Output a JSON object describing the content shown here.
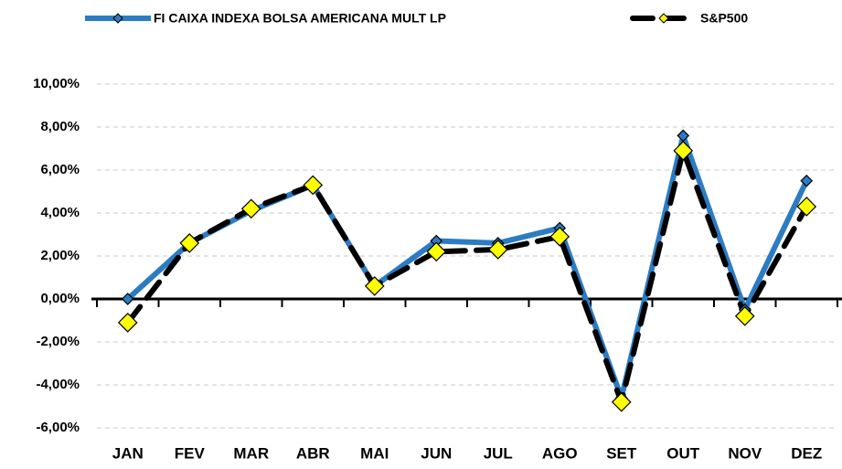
{
  "chart_data": {
    "type": "line",
    "categories": [
      "JAN",
      "FEV",
      "MAR",
      "ABR",
      "MAI",
      "JUN",
      "JUL",
      "AGO",
      "SET",
      "OUT",
      "NOV",
      "DEZ"
    ],
    "series": [
      {
        "name": "FI CAIXA INDEXA BOLSA AMERICANA MULT LP",
        "color": "#2b7cc2",
        "marker_color": "#2b7cc2",
        "line_style": "solid",
        "values": [
          0.0,
          2.6,
          4.1,
          5.3,
          0.6,
          2.7,
          2.6,
          3.3,
          -4.6,
          7.6,
          -0.5,
          5.5
        ]
      },
      {
        "name": "S&P500",
        "color": "#000000",
        "marker_color": "#ffff00",
        "line_style": "dashed",
        "values": [
          -1.1,
          2.6,
          4.2,
          5.3,
          0.6,
          2.2,
          2.3,
          2.9,
          -4.8,
          6.9,
          -0.8,
          4.3
        ]
      }
    ],
    "ylim": [
      -6,
      10
    ],
    "yticks": [
      {
        "value": -6,
        "label": "-6,00%"
      },
      {
        "value": -4,
        "label": "-4,00%"
      },
      {
        "value": -2,
        "label": "-2,00%"
      },
      {
        "value": 0,
        "label": "0,00%"
      },
      {
        "value": 2,
        "label": "2,00%"
      },
      {
        "value": 4,
        "label": "4,00%"
      },
      {
        "value": 6,
        "label": "6,00%"
      },
      {
        "value": 8,
        "label": "8,00%"
      },
      {
        "value": 10,
        "label": "10,00%"
      }
    ],
    "grid": true,
    "legend": "top"
  }
}
